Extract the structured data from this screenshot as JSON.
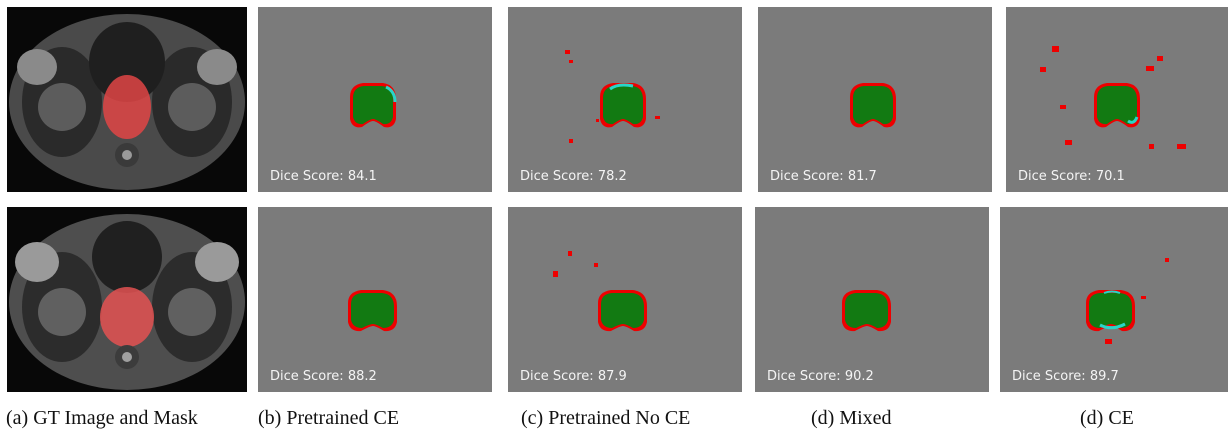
{
  "rows": [
    {
      "dice": [
        "Dice Score: 84.1",
        "Dice Score: 78.2",
        "Dice Score: 81.7",
        "Dice Score: 70.1"
      ]
    },
    {
      "dice": [
        "Dice Score: 88.2",
        "Dice Score: 87.9",
        "Dice Score: 90.2",
        "Dice Score: 89.7"
      ]
    }
  ],
  "captions": [
    "(a) GT Image and Mask",
    "(b) Pretrained CE",
    "(c) Pretrained No CE",
    "(d) Mixed",
    "(d) CE"
  ],
  "colors": {
    "background": "#7b7b7b",
    "prediction": "#127a12",
    "false_positive": "#ff0000",
    "ground_truth_overlay": "#e23a3a",
    "boundary_cyan": "#2ad4c8"
  }
}
